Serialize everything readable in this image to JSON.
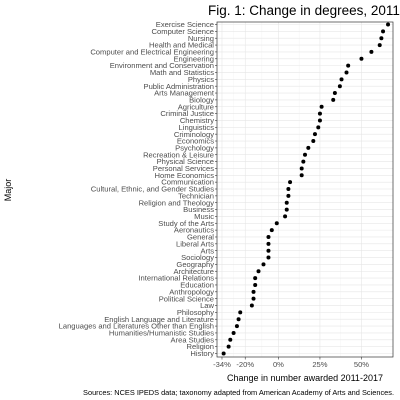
{
  "chart_data": {
    "type": "scatter",
    "title": "Fig. 1: Change in degrees, 2011-2017",
    "xlabel": "Change in number awarded 2011-2017",
    "ylabel": "Major",
    "caption": "Sources: NCES IPEDS data; taxonomy adapted from American Academy of Arts and Sciences.",
    "xlim": [
      -37,
      69
    ],
    "xticks": [
      -34,
      -20,
      0,
      25,
      50
    ],
    "xtick_labels": [
      "-34%",
      "-20%",
      "0%",
      "25%",
      "50%"
    ],
    "grid": true,
    "points": [
      {
        "major": "Exercise Science",
        "value": 66
      },
      {
        "major": "Computer Science",
        "value": 63
      },
      {
        "major": "Nursing",
        "value": 62
      },
      {
        "major": "Health and Medical",
        "value": 61
      },
      {
        "major": "Computer and Electrical Engineering",
        "value": 56
      },
      {
        "major": "Engineering",
        "value": 50
      },
      {
        "major": "Environment and Conservation",
        "value": 42
      },
      {
        "major": "Math and Statistics",
        "value": 41
      },
      {
        "major": "Physics",
        "value": 38
      },
      {
        "major": "Public Administration",
        "value": 37
      },
      {
        "major": "Arts Management",
        "value": 34
      },
      {
        "major": "Biology",
        "value": 33
      },
      {
        "major": "Agriculture",
        "value": 26
      },
      {
        "major": "Criminal Justice",
        "value": 25
      },
      {
        "major": "Chemistry",
        "value": 25
      },
      {
        "major": "Linguistics",
        "value": 24
      },
      {
        "major": "Criminology",
        "value": 22
      },
      {
        "major": "Economics",
        "value": 21
      },
      {
        "major": "Psychology",
        "value": 18
      },
      {
        "major": "Recreation & Leisure",
        "value": 16
      },
      {
        "major": "Physical Science",
        "value": 15
      },
      {
        "major": "Personal Services",
        "value": 14
      },
      {
        "major": "Home Economics",
        "value": 14
      },
      {
        "major": "Communication",
        "value": 7
      },
      {
        "major": "Cultural, Ethnic, and Gender Studies",
        "value": 6
      },
      {
        "major": "Technician",
        "value": 6
      },
      {
        "major": "Religion and Theology",
        "value": 5
      },
      {
        "major": "Business",
        "value": 5
      },
      {
        "major": "Music",
        "value": 4
      },
      {
        "major": "Study of the Arts",
        "value": -1
      },
      {
        "major": "Aeronautics",
        "value": -4
      },
      {
        "major": "General",
        "value": -6
      },
      {
        "major": "Liberal Arts",
        "value": -6
      },
      {
        "major": "Arts",
        "value": -6
      },
      {
        "major": "Sociology",
        "value": -6
      },
      {
        "major": "Geography",
        "value": -9
      },
      {
        "major": "Architecture",
        "value": -12
      },
      {
        "major": "International Relations",
        "value": -14
      },
      {
        "major": "Education",
        "value": -14
      },
      {
        "major": "Anthropology",
        "value": -15
      },
      {
        "major": "Political Science",
        "value": -15
      },
      {
        "major": "Law",
        "value": -16
      },
      {
        "major": "Philosophy",
        "value": -23
      },
      {
        "major": "English Language and Literature",
        "value": -24
      },
      {
        "major": "Languages and Literatures Other than English",
        "value": -25
      },
      {
        "major": "Humanities/Humanistic Studies",
        "value": -27
      },
      {
        "major": "Area Studies",
        "value": -29
      },
      {
        "major": "Religion",
        "value": -30
      },
      {
        "major": "History",
        "value": -33
      }
    ]
  }
}
